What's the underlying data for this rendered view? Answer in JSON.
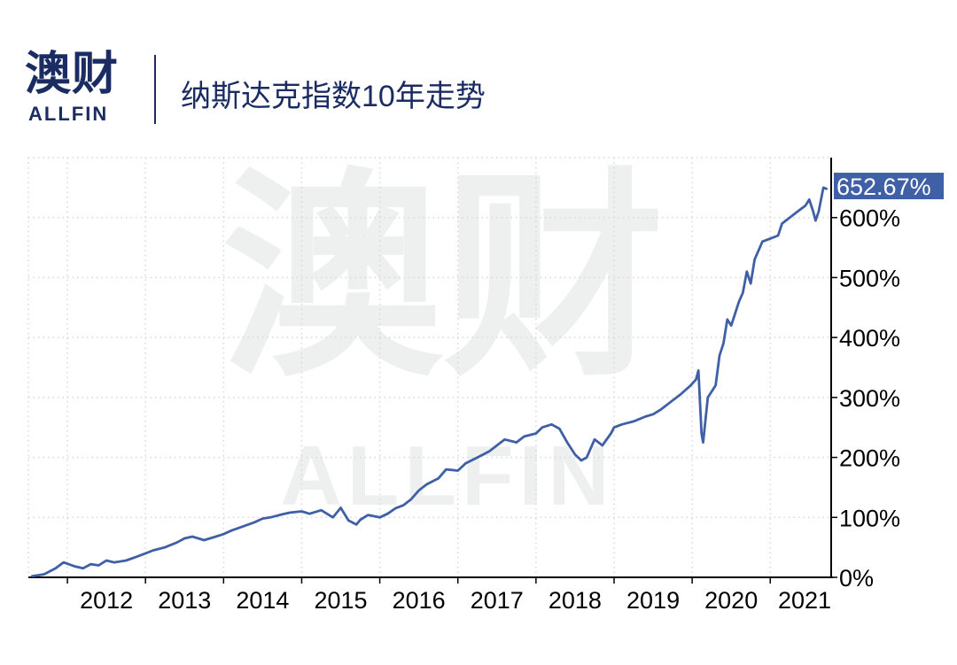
{
  "header": {
    "logo_cn": "澳财",
    "logo_en": "ALLFIN",
    "title": "纳斯达克指数10年走势"
  },
  "watermark": {
    "cn": "澳财",
    "en": "ALLFIN"
  },
  "colors": {
    "line": "#3f5fa6",
    "brand": "#1b2c63",
    "badge_bg": "#3f5fa6",
    "grid": "#d8d8d8"
  },
  "chart_data": {
    "type": "line",
    "title": "纳斯达克指数10年走势",
    "xlabel": "",
    "ylabel": "",
    "x_ticks": [
      "2012",
      "2013",
      "2014",
      "2015",
      "2016",
      "2017",
      "2018",
      "2019",
      "2020",
      "2021"
    ],
    "y_ticks": [
      "0%",
      "100%",
      "200%",
      "300%",
      "400%",
      "500%",
      "600%"
    ],
    "ylim": [
      0,
      700
    ],
    "xlim": [
      2011.5,
      2021.78
    ],
    "y_axis_side": "right",
    "grid": true,
    "last_value_label": "652.67%",
    "series": [
      {
        "x": [
          2011.55,
          2011.7,
          2011.85,
          2011.95,
          2012.1,
          2012.2,
          2012.3,
          2012.4,
          2012.5,
          2012.6,
          2012.75,
          2012.9,
          2013.0,
          2013.1,
          2013.25,
          2013.4,
          2013.5,
          2013.6,
          2013.75,
          2013.9,
          2014.0,
          2014.1,
          2014.25,
          2014.4,
          2014.5,
          2014.6,
          2014.75,
          2014.85,
          2015.0,
          2015.1,
          2015.25,
          2015.4,
          2015.5,
          2015.6,
          2015.7,
          2015.75,
          2015.85,
          2016.0,
          2016.1,
          2016.2,
          2016.3,
          2016.4,
          2016.5,
          2016.6,
          2016.75,
          2016.85,
          2017.0,
          2017.1,
          2017.25,
          2017.4,
          2017.5,
          2017.6,
          2017.75,
          2017.85,
          2018.0,
          2018.08,
          2018.2,
          2018.3,
          2018.4,
          2018.5,
          2018.58,
          2018.65,
          2018.75,
          2018.85,
          2018.96,
          2019.0,
          2019.1,
          2019.25,
          2019.4,
          2019.5,
          2019.6,
          2019.75,
          2019.85,
          2019.98,
          2020.05,
          2020.08,
          2020.12,
          2020.14,
          2020.2,
          2020.3,
          2020.35,
          2020.4,
          2020.45,
          2020.5,
          2020.55,
          2020.6,
          2020.65,
          2020.7,
          2020.75,
          2020.8,
          2020.85,
          2020.9,
          2021.0,
          2021.1,
          2021.15,
          2021.25,
          2021.35,
          2021.45,
          2021.5,
          2021.55,
          2021.58,
          2021.62,
          2021.68,
          2021.72
        ],
        "y": [
          2,
          5,
          15,
          25,
          18,
          15,
          22,
          20,
          28,
          25,
          28,
          35,
          40,
          45,
          50,
          58,
          65,
          68,
          62,
          68,
          72,
          78,
          85,
          92,
          98,
          100,
          105,
          108,
          110,
          106,
          112,
          100,
          116,
          95,
          88,
          96,
          104,
          100,
          106,
          115,
          120,
          130,
          145,
          155,
          165,
          180,
          178,
          190,
          200,
          210,
          220,
          230,
          225,
          235,
          240,
          250,
          255,
          248,
          225,
          205,
          195,
          200,
          230,
          220,
          240,
          250,
          255,
          260,
          268,
          272,
          280,
          295,
          305,
          320,
          330,
          345,
          240,
          225,
          300,
          320,
          370,
          390,
          430,
          420,
          440,
          460,
          475,
          510,
          490,
          530,
          545,
          560,
          565,
          570,
          590,
          600,
          610,
          620,
          630,
          610,
          595,
          610,
          650,
          648
        ]
      }
    ]
  }
}
